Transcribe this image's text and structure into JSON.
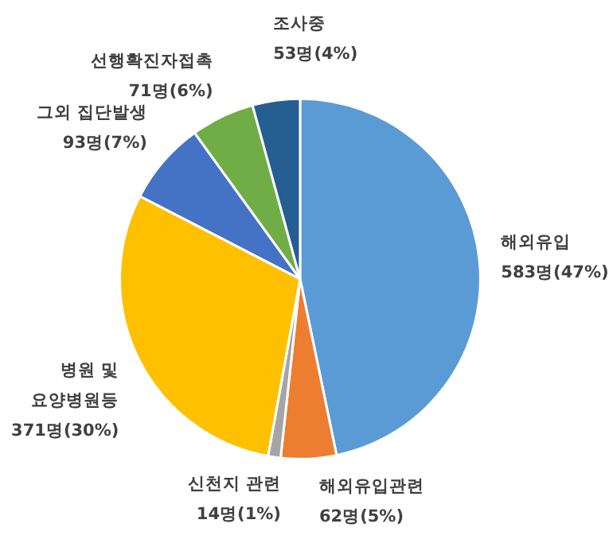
{
  "chart_data": {
    "type": "pie",
    "categories": [
      "해외유입",
      "해외유입관련",
      "신천지 관련",
      "병원 및 요양병원등",
      "그외 집단발생",
      "선행확진자접촉",
      "조사중"
    ],
    "values": [
      583,
      62,
      14,
      371,
      93,
      71,
      53
    ],
    "colors": [
      "#5b9bd5",
      "#ed7d31",
      "#a5a5a5",
      "#ffc000",
      "#4472c4",
      "#70ad47",
      "#255e91"
    ],
    "value_labels": [
      "583명(47%)",
      "62명(5%)",
      "14명(1%)",
      "371명(30%)",
      "93명(7%)",
      "71명(6%)",
      "53명(4%)"
    ]
  }
}
